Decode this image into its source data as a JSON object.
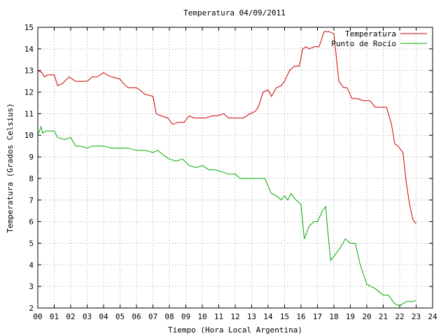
{
  "chart_data": {
    "type": "line",
    "title": "Temperatura 04/09/2011",
    "xlabel": "Tiempo (Hora Local Argentina)",
    "ylabel": "Temperatura (Grados Celsius)",
    "xlim": [
      0,
      24
    ],
    "ylim": [
      2,
      15
    ],
    "grid": true,
    "legend_position": "top-right",
    "x_tick_labels": [
      "00",
      "01",
      "02",
      "03",
      "04",
      "05",
      "06",
      "07",
      "08",
      "09",
      "10",
      "11",
      "12",
      "13",
      "14",
      "15",
      "16",
      "17",
      "18",
      "19",
      "20",
      "21",
      "22",
      "23",
      "24"
    ],
    "y_ticks": [
      2,
      3,
      4,
      5,
      6,
      7,
      8,
      9,
      10,
      11,
      12,
      13,
      14,
      15
    ],
    "series": [
      {
        "name": "Temperatura",
        "color": "#cc0000",
        "x": [
          0,
          0.25,
          0.4,
          0.6,
          1.0,
          1.2,
          1.5,
          1.9,
          2.3,
          2.6,
          3.0,
          3.3,
          3.6,
          4.0,
          4.2,
          4.5,
          5.0,
          5.2,
          5.5,
          6.0,
          6.2,
          6.5,
          7.0,
          7.2,
          7.5,
          7.9,
          8.2,
          8.5,
          8.9,
          9.2,
          9.5,
          9.8,
          10.2,
          10.6,
          10.9,
          11.3,
          11.6,
          12.1,
          12.5,
          12.9,
          13.2,
          13.4,
          13.7,
          14.0,
          14.2,
          14.5,
          14.8,
          15.0,
          15.3,
          15.6,
          15.9,
          16.1,
          16.3,
          16.5,
          16.8,
          17.1,
          17.4,
          17.7,
          18.0,
          18.3,
          18.6,
          18.8,
          19.1,
          19.4,
          19.8,
          20.2,
          20.5,
          20.8,
          21.2,
          21.5,
          21.7,
          21.9,
          22.2,
          22.4,
          22.6,
          22.8,
          23.0
        ],
        "values": [
          13.0,
          12.9,
          12.7,
          12.8,
          12.8,
          12.3,
          12.4,
          12.7,
          12.5,
          12.5,
          12.5,
          12.7,
          12.7,
          12.9,
          12.8,
          12.7,
          12.6,
          12.4,
          12.2,
          12.2,
          12.1,
          11.9,
          11.8,
          11.0,
          10.9,
          10.8,
          10.5,
          10.6,
          10.6,
          10.9,
          10.8,
          10.8,
          10.8,
          10.9,
          10.9,
          11.0,
          10.8,
          10.8,
          10.8,
          11.0,
          11.1,
          11.3,
          12.0,
          12.1,
          11.8,
          12.2,
          12.3,
          12.5,
          13.0,
          13.2,
          13.2,
          14.0,
          14.1,
          14.0,
          14.1,
          14.1,
          14.8,
          14.8,
          14.7,
          12.5,
          12.2,
          12.2,
          11.7,
          11.7,
          11.6,
          11.6,
          11.3,
          11.3,
          11.3,
          10.5,
          9.6,
          9.5,
          9.2,
          7.8,
          6.8,
          6.1,
          5.9
        ]
      },
      {
        "name": "Punto de Rocío",
        "color": "#00aa00",
        "x": [
          0,
          0.1,
          0.2,
          0.3,
          0.5,
          1.0,
          1.2,
          1.6,
          2.0,
          2.3,
          2.6,
          3.0,
          3.3,
          3.6,
          4.0,
          4.5,
          5.0,
          5.5,
          6.0,
          6.5,
          7.0,
          7.3,
          7.6,
          8.0,
          8.4,
          8.8,
          9.2,
          9.6,
          10.0,
          10.4,
          10.8,
          11.2,
          11.6,
          12.0,
          12.3,
          12.6,
          13.0,
          13.4,
          13.8,
          14.2,
          14.5,
          14.8,
          15.0,
          15.2,
          15.4,
          15.7,
          16.0,
          16.2,
          16.5,
          16.8,
          17.0,
          17.3,
          17.5,
          17.6,
          17.8,
          18.1,
          18.4,
          18.7,
          19.0,
          19.3,
          19.6,
          20.0,
          20.5,
          21.0,
          21.3,
          21.7,
          22.0,
          22.4,
          22.8,
          23.0
        ],
        "values": [
          10.0,
          10.2,
          10.4,
          10.1,
          10.2,
          10.2,
          9.9,
          9.8,
          9.9,
          9.5,
          9.5,
          9.4,
          9.5,
          9.5,
          9.5,
          9.4,
          9.4,
          9.4,
          9.3,
          9.3,
          9.2,
          9.3,
          9.1,
          8.9,
          8.8,
          8.9,
          8.6,
          8.5,
          8.6,
          8.4,
          8.4,
          8.3,
          8.2,
          8.2,
          8.0,
          8.0,
          8.0,
          8.0,
          8.0,
          7.3,
          7.2,
          7.0,
          7.2,
          7.0,
          7.3,
          7.0,
          6.8,
          5.2,
          5.8,
          6.0,
          6.0,
          6.5,
          6.7,
          5.8,
          4.2,
          4.5,
          4.8,
          5.2,
          5.0,
          5.0,
          4.0,
          3.1,
          2.9,
          2.6,
          2.6,
          2.2,
          2.1,
          2.3,
          2.3,
          2.35
        ]
      }
    ]
  }
}
